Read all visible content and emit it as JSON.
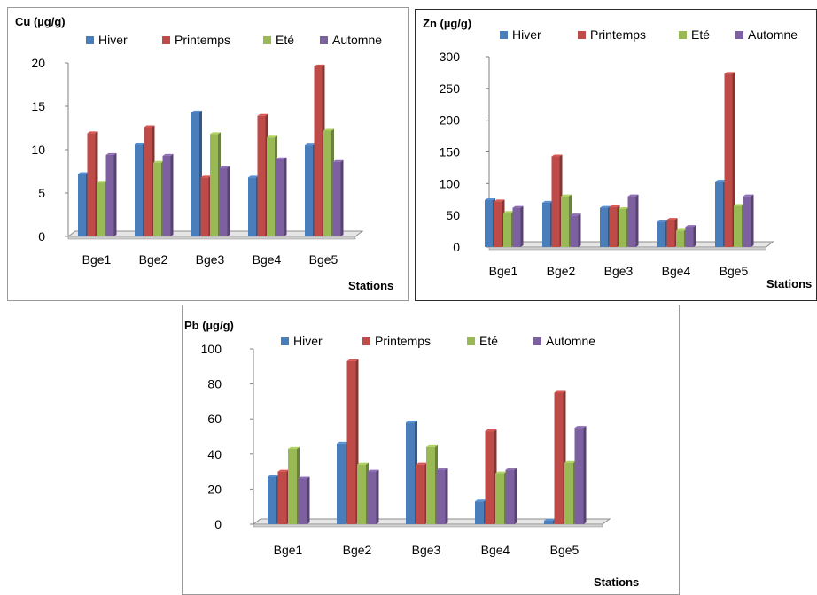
{
  "colors": {
    "Hiver": "#4a7ebb",
    "Printemps": "#be4b48",
    "Eté": "#98b954",
    "Automne": "#7d60a0"
  },
  "chart_data": [
    {
      "id": "cu",
      "type": "bar",
      "ylabel": "Cu (µg/g)",
      "xlabel": "Stations",
      "ylim": [
        0,
        20
      ],
      "yticks": [
        0,
        5,
        10,
        15,
        20
      ],
      "legend": "top",
      "categories": [
        "Bge1",
        "Bge2",
        "Bge3",
        "Bge4",
        "Bge5"
      ],
      "series": [
        {
          "name": "Hiver",
          "values": [
            7.2,
            10.6,
            14.3,
            6.8,
            10.5
          ]
        },
        {
          "name": "Printemps",
          "values": [
            11.9,
            12.6,
            6.8,
            13.9,
            19.6
          ]
        },
        {
          "name": "Eté",
          "values": [
            6.2,
            8.5,
            11.8,
            11.4,
            12.2
          ]
        },
        {
          "name": "Automne",
          "values": [
            9.4,
            9.3,
            7.9,
            8.9,
            8.6
          ]
        }
      ]
    },
    {
      "id": "zn",
      "type": "bar",
      "ylabel": "Zn (µg/g)",
      "xlabel": "Stations",
      "ylim": [
        0,
        300
      ],
      "yticks": [
        0,
        50,
        100,
        150,
        200,
        250,
        300
      ],
      "legend": "top",
      "categories": [
        "Bge1",
        "Bge2",
        "Bge3",
        "Bge4",
        "Bge5"
      ],
      "series": [
        {
          "name": "Hiver",
          "values": [
            74,
            70,
            62,
            40,
            103
          ]
        },
        {
          "name": "Printemps",
          "values": [
            72,
            143,
            63,
            43,
            273
          ]
        },
        {
          "name": "Eté",
          "values": [
            54,
            80,
            60,
            26,
            65
          ]
        },
        {
          "name": "Automne",
          "values": [
            62,
            50,
            80,
            32,
            80
          ]
        }
      ]
    },
    {
      "id": "pb",
      "type": "bar",
      "ylabel": "Pb (µg/g)",
      "xlabel": "Stations",
      "ylim": [
        0,
        100
      ],
      "yticks": [
        0,
        20,
        40,
        60,
        80,
        100
      ],
      "legend": "top",
      "categories": [
        "Bge1",
        "Bge2",
        "Bge3",
        "Bge4",
        "Bge5"
      ],
      "series": [
        {
          "name": "Hiver",
          "values": [
            27,
            46,
            58,
            13,
            2
          ]
        },
        {
          "name": "Printemps",
          "values": [
            30,
            93,
            34,
            53,
            75
          ]
        },
        {
          "name": "Eté",
          "values": [
            43,
            34,
            44,
            29,
            35
          ]
        },
        {
          "name": "Automne",
          "values": [
            26,
            30,
            31,
            31,
            55
          ]
        }
      ]
    }
  ]
}
